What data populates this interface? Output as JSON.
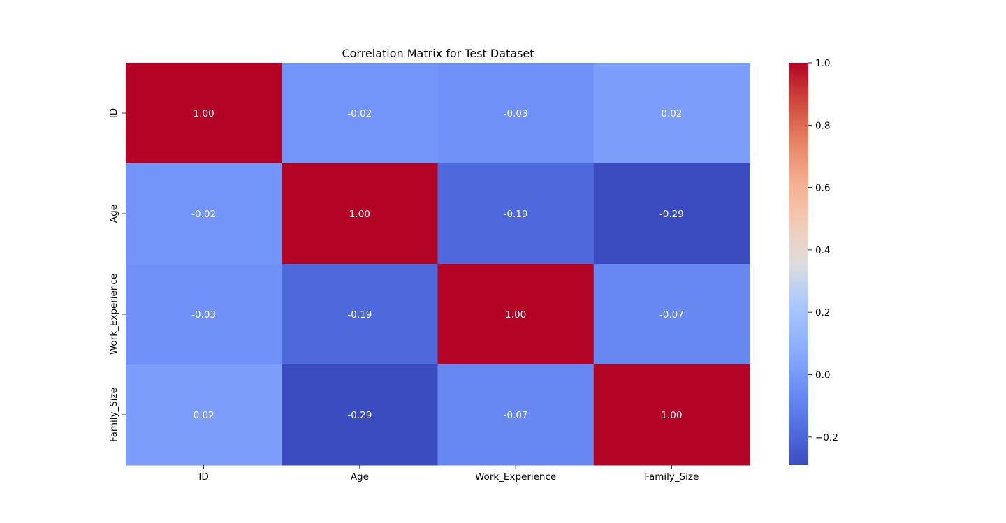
{
  "chart_data": {
    "type": "heatmap",
    "title": "Correlation Matrix for Test Dataset",
    "xlabel": "",
    "ylabel": "",
    "x_categories": [
      "ID",
      "Age",
      "Work_Experience",
      "Family_Size"
    ],
    "y_categories": [
      "ID",
      "Age",
      "Work_Experience",
      "Family_Size"
    ],
    "values": [
      [
        1.0,
        -0.02,
        -0.03,
        0.02
      ],
      [
        -0.02,
        1.0,
        -0.19,
        -0.29
      ],
      [
        -0.03,
        -0.19,
        1.0,
        -0.07
      ],
      [
        0.02,
        -0.29,
        -0.07,
        1.0
      ]
    ],
    "annotations": [
      [
        "1.00",
        "-0.02",
        "-0.03",
        "0.02"
      ],
      [
        "-0.02",
        "1.00",
        "-0.19",
        "-0.29"
      ],
      [
        "-0.03",
        "-0.19",
        "1.00",
        "-0.07"
      ],
      [
        "0.02",
        "-0.29",
        "-0.07",
        "1.00"
      ]
    ],
    "colormap": "coolwarm",
    "colorbar": {
      "vmin": -0.29,
      "vmax": 1.0,
      "ticks": [
        -0.2,
        0.0,
        0.2,
        0.4,
        0.6,
        0.8,
        1.0
      ],
      "tick_labels": [
        "−0.2",
        "0.0",
        "0.2",
        "0.4",
        "0.6",
        "0.8",
        "1.0"
      ]
    },
    "grid": false,
    "legend": "colorbar-right"
  }
}
